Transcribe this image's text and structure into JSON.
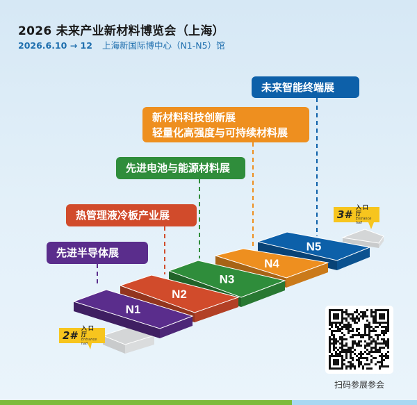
{
  "header": {
    "title": "2026 未来产业新材料博览会（上海）",
    "date": "2026.6.10 → 12",
    "venue": "上海新国际博中心（N1-N5）馆"
  },
  "zones": [
    {
      "hall": "N1",
      "label": "先进半导体展",
      "color": "#5a2d8c"
    },
    {
      "hall": "N2",
      "label": "热管理液冷板产业展",
      "color": "#d14b2b"
    },
    {
      "hall": "N3",
      "label": "先进电池与能源材料展",
      "color": "#2f8d3b"
    },
    {
      "hall": "N4",
      "label": "新材料科技创新展",
      "label2": "轻量化高强度与可持续材料展",
      "color": "#ee8f1f"
    },
    {
      "hall": "N5",
      "label": "未来智能终端展",
      "color": "#0d60a9"
    }
  ],
  "entrances": [
    {
      "num": "2#",
      "cn": "入口厅",
      "en": "Entrance hall"
    },
    {
      "num": "3#",
      "cn": "入口厅",
      "en": "Entrance hall"
    }
  ],
  "qr": {
    "caption": "扫码参展参会"
  }
}
